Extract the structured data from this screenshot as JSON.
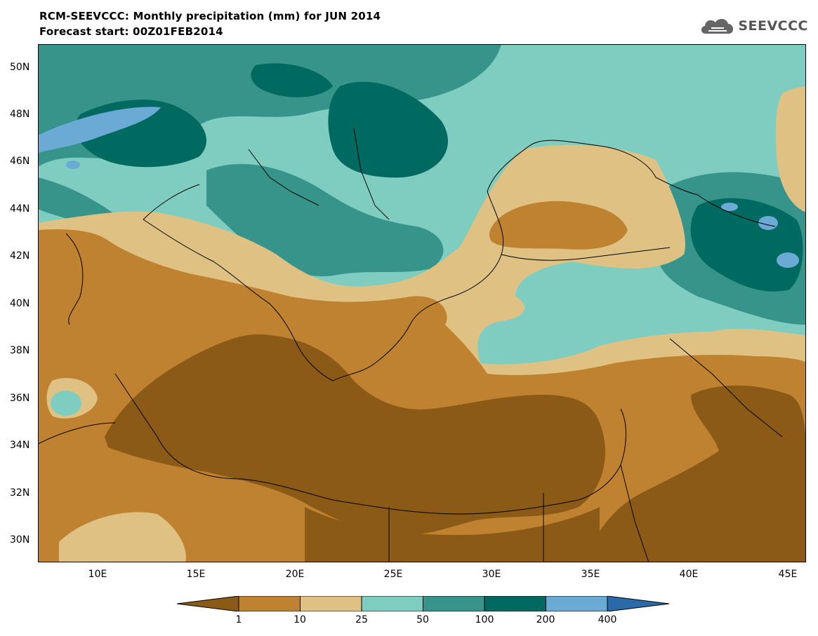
{
  "title": {
    "line1": "RCM-SEEVCCC: Monthly precipitation (mm) for JUN 2014",
    "line2": "Forecast start: 00Z01FEB2014"
  },
  "logo": {
    "text": "SEEVCCC",
    "icon": "cloud-icon"
  },
  "map": {
    "variable": "Monthly precipitation (mm)",
    "lon_range": [
      7,
      46
    ],
    "lat_range": [
      29,
      51
    ],
    "y_ticks": [
      "50N",
      "48N",
      "46N",
      "44N",
      "42N",
      "40N",
      "38N",
      "36N",
      "34N",
      "32N",
      "30N"
    ],
    "x_ticks": [
      "10E",
      "15E",
      "20E",
      "25E",
      "30E",
      "35E",
      "40E",
      "45E"
    ]
  },
  "colorbar": {
    "colors": [
      "#8b5a16",
      "#bf8230",
      "#dfc283",
      "#7fcdc0",
      "#36948b",
      "#006960",
      "#6aaad4",
      "#2b6aa8"
    ],
    "labels": [
      "1",
      "10",
      "25",
      "50",
      "100",
      "200",
      "400"
    ]
  }
}
